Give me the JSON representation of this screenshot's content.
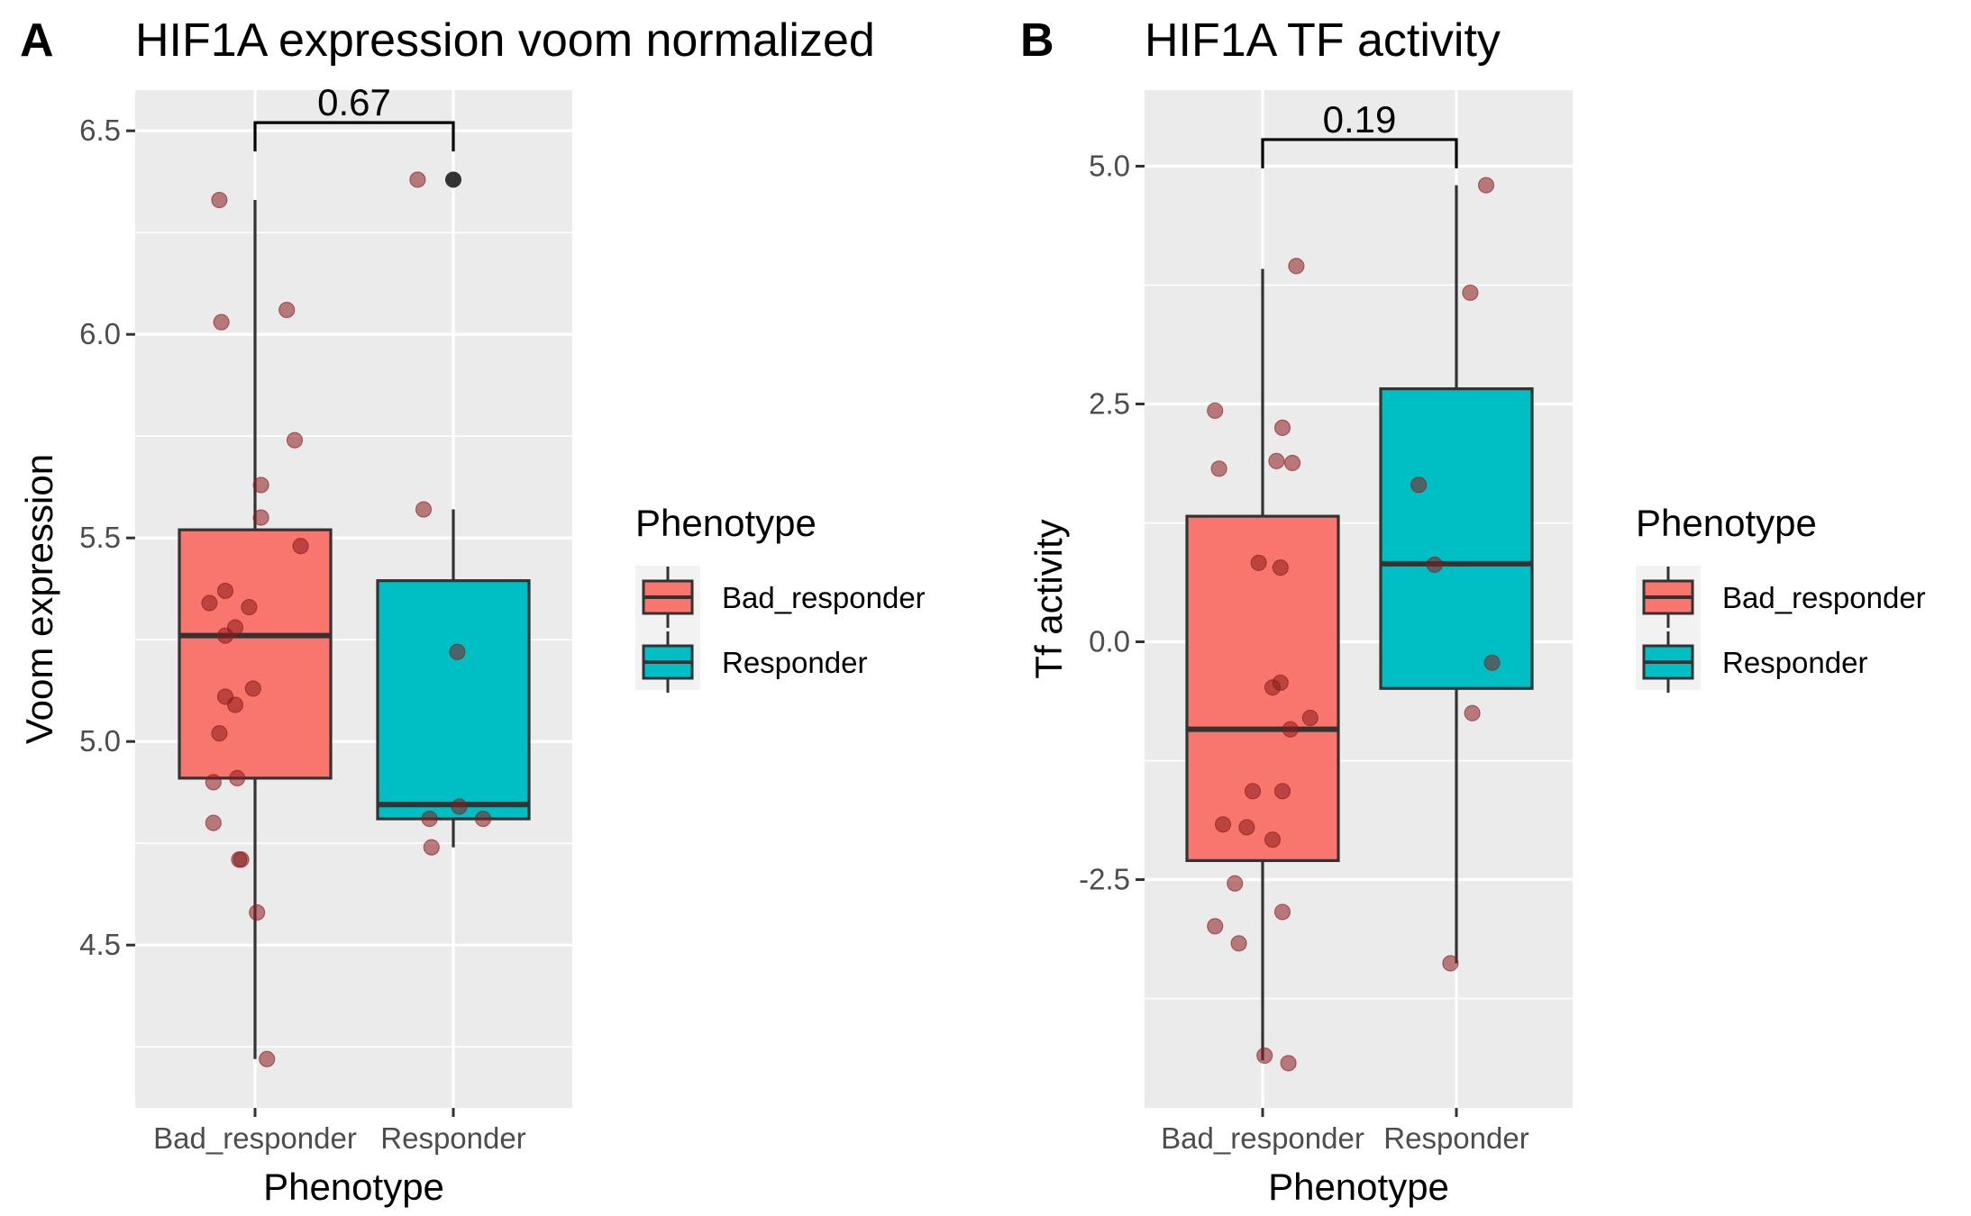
{
  "chart_data": [
    {
      "type": "boxplot",
      "panel_letter": "A",
      "title": "HIF1A expression voom normalized",
      "xlabel": "Phenotype",
      "ylabel": "Voom expression",
      "categories": [
        "Bad_responder",
        "Responder"
      ],
      "ylim": [
        4.1,
        6.6
      ],
      "yticks": [
        4.5,
        5.0,
        5.5,
        6.0,
        6.5
      ],
      "ytick_labels": [
        "4.5",
        "5.0",
        "5.5",
        "6.0",
        "6.5"
      ],
      "grid": true,
      "colors": {
        "Bad_responder": "#F8766D",
        "Responder": "#00BFC4"
      },
      "boxes": [
        {
          "category": "Bad_responder",
          "whisker_low": 4.22,
          "q1": 4.91,
          "median": 5.26,
          "q3": 5.52,
          "whisker_high": 6.33,
          "outliers": []
        },
        {
          "category": "Responder",
          "whisker_low": 4.74,
          "q1": 4.81,
          "median": 4.845,
          "q3": 5.395,
          "whisker_high": 5.57,
          "outliers": [
            6.38
          ]
        }
      ],
      "points": {
        "Bad_responder": [
          [
            -0.18,
            6.33
          ],
          [
            -0.17,
            6.03
          ],
          [
            0.16,
            6.06
          ],
          [
            0.2,
            5.74
          ],
          [
            0.03,
            5.63
          ],
          [
            0.03,
            5.55
          ],
          [
            0.23,
            5.48
          ],
          [
            -0.15,
            5.37
          ],
          [
            -0.23,
            5.34
          ],
          [
            -0.03,
            5.33
          ],
          [
            -0.1,
            5.28
          ],
          [
            -0.15,
            5.26
          ],
          [
            -0.15,
            5.11
          ],
          [
            -0.1,
            5.09
          ],
          [
            -0.01,
            5.13
          ],
          [
            -0.18,
            5.02
          ],
          [
            -0.21,
            4.9
          ],
          [
            -0.09,
            4.91
          ],
          [
            -0.21,
            4.8
          ],
          [
            -0.08,
            4.71
          ],
          [
            -0.07,
            4.71
          ],
          [
            0.01,
            4.58
          ],
          [
            0.06,
            4.22
          ]
        ],
        "Responder": [
          [
            -0.18,
            6.38
          ],
          [
            -0.15,
            5.57
          ],
          [
            0.02,
            5.22
          ],
          [
            0.03,
            4.84
          ],
          [
            -0.12,
            4.81
          ],
          [
            0.15,
            4.81
          ],
          [
            -0.11,
            4.74
          ]
        ]
      },
      "comparison": {
        "groups": [
          "Bad_responder",
          "Responder"
        ],
        "p_value": "0.67",
        "y": 6.52
      },
      "legend": {
        "title": "Phenotype",
        "entries": [
          "Bad_responder",
          "Responder"
        ],
        "position": "right"
      }
    },
    {
      "type": "boxplot",
      "panel_letter": "B",
      "title": "HIF1A TF activity",
      "xlabel": "Phenotype",
      "ylabel": "Tf activity",
      "categories": [
        "Bad_responder",
        "Responder"
      ],
      "ylim": [
        -4.9,
        5.8
      ],
      "yticks": [
        -2.5,
        0.0,
        2.5,
        5.0
      ],
      "ytick_labels": [
        "-2.5",
        "0.0",
        "2.5",
        "5.0"
      ],
      "grid": true,
      "colors": {
        "Bad_responder": "#F8766D",
        "Responder": "#00BFC4"
      },
      "boxes": [
        {
          "category": "Bad_responder",
          "whisker_low": -4.4,
          "q1": -2.3,
          "median": -0.92,
          "q3": 1.32,
          "whisker_high": 3.92,
          "outliers": []
        },
        {
          "category": "Responder",
          "whisker_low": -3.38,
          "q1": -0.49,
          "median": 0.82,
          "q3": 2.66,
          "whisker_high": 4.8,
          "outliers": []
        }
      ],
      "points": {
        "Bad_responder": [
          [
            0.17,
            3.95
          ],
          [
            -0.24,
            2.43
          ],
          [
            0.1,
            2.25
          ],
          [
            0.07,
            1.9
          ],
          [
            0.15,
            1.88
          ],
          [
            -0.22,
            1.82
          ],
          [
            -0.02,
            0.83
          ],
          [
            0.09,
            0.78
          ],
          [
            0.09,
            -0.43
          ],
          [
            0.05,
            -0.48
          ],
          [
            0.24,
            -0.8
          ],
          [
            0.14,
            -0.92
          ],
          [
            -0.05,
            -1.57
          ],
          [
            0.1,
            -1.57
          ],
          [
            -0.2,
            -1.92
          ],
          [
            -0.08,
            -1.95
          ],
          [
            0.05,
            -2.08
          ],
          [
            -0.14,
            -2.54
          ],
          [
            0.1,
            -2.84
          ],
          [
            -0.24,
            -2.99
          ],
          [
            -0.12,
            -3.17
          ],
          [
            0.01,
            -4.35
          ],
          [
            0.13,
            -4.43
          ]
        ],
        "Responder": [
          [
            0.15,
            4.8
          ],
          [
            0.07,
            3.67
          ],
          [
            -0.19,
            1.65
          ],
          [
            -0.11,
            0.81
          ],
          [
            0.18,
            -0.22
          ],
          [
            0.08,
            -0.75
          ],
          [
            -0.03,
            -3.38
          ]
        ]
      },
      "comparison": {
        "groups": [
          "Bad_responder",
          "Responder"
        ],
        "p_value": "0.19",
        "y": 5.28
      },
      "legend": {
        "title": "Phenotype",
        "entries": [
          "Bad_responder",
          "Responder"
        ],
        "position": "right"
      }
    }
  ]
}
